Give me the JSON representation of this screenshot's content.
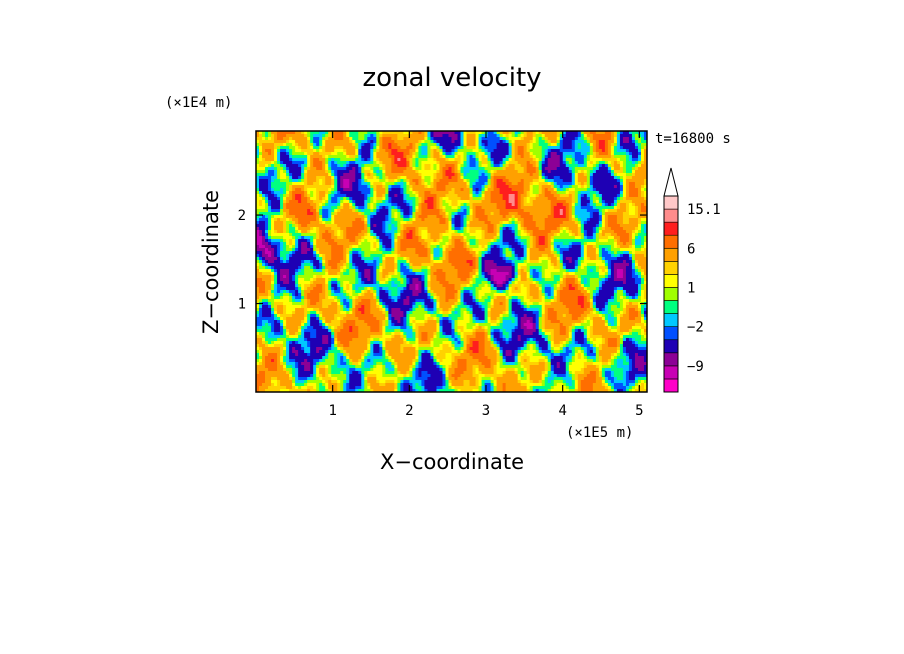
{
  "chart_data": {
    "type": "heatmap",
    "title": "zonal velocity",
    "xlabel": "X−coordinate",
    "ylabel": "Z−coordinate",
    "x_scale_label": "(×1E5 m)",
    "y_scale_label": "(×1E4 m)",
    "time_label": "t=16800 s",
    "xlim": [
      0,
      5.1
    ],
    "ylim": [
      0,
      2.95
    ],
    "x_ticks": [
      1,
      2,
      3,
      4,
      5
    ],
    "y_ticks": [
      1,
      2
    ],
    "colorbar": {
      "levels": [
        -15,
        -12,
        -9,
        -6,
        -3,
        -2,
        -1,
        0,
        1,
        2,
        3,
        6,
        9,
        12,
        15.1
      ],
      "colors": [
        "#ff00c8",
        "#c800b4",
        "#8c0096",
        "#1e00b4",
        "#0050ff",
        "#00c8ff",
        "#00ff80",
        "#a0ff00",
        "#ffff00",
        "#ffd200",
        "#ffa000",
        "#ff6e00",
        "#ff1e1e",
        "#ff8c8c",
        "#ffc8c8"
      ],
      "labels": [
        "15.1",
        "6",
        "1",
        "−2",
        "−9"
      ],
      "extend_top": true
    },
    "field_description_values_range": [
      -15,
      15.1
    ]
  }
}
